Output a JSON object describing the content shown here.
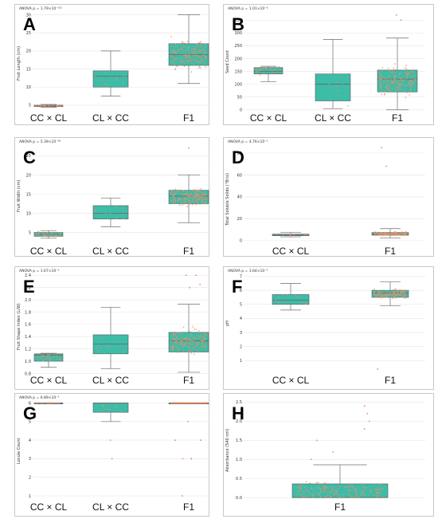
{
  "colors": {
    "box": "#3dbca8",
    "box_edge": "#5a5a5a",
    "median": "#6b6b6b",
    "point": "#e8906a",
    "grid": "#e6e6e6",
    "frame": "#c8c8c8"
  },
  "chart_data": [
    {
      "type": "box",
      "letter": "A",
      "anova": "ANOVA p = 1.79×10⁻¹⁰¹",
      "ylabel": "Fruit Length (cm)",
      "ylim": [
        3,
        31
      ],
      "yticks": [
        5,
        10,
        15,
        20,
        25,
        30
      ],
      "ytick_labels": [
        "5",
        "10",
        "15",
        "20",
        "25",
        "30"
      ],
      "categories": [
        "CC × CL",
        "CL × CC",
        "F1"
      ],
      "boxes": [
        {
          "q1": 4.6,
          "median": 4.8,
          "q3": 5.0,
          "whisker_low": 4.4,
          "whisker_high": 5.2,
          "points_n": 30,
          "outliers": []
        },
        {
          "q1": 10.0,
          "median": 13.0,
          "q3": 14.5,
          "whisker_low": 7.5,
          "whisker_high": 20.0,
          "points_n": 10,
          "outliers": []
        },
        {
          "q1": 16.0,
          "median": 19.0,
          "q3": 22.0,
          "whisker_low": 11.0,
          "whisker_high": 30.0,
          "points_n": 160,
          "outliers": []
        }
      ]
    },
    {
      "type": "box",
      "letter": "B",
      "anova": "ANOVA p = 1.01×10⁻⁶",
      "ylabel": "Seed Count",
      "ylim": [
        -10,
        385
      ],
      "yticks": [
        0,
        50,
        100,
        150,
        200,
        250,
        300,
        350
      ],
      "ytick_labels": [
        "0",
        "50",
        "100",
        "150",
        "200",
        "250",
        "300",
        "350"
      ],
      "categories": [
        "CC × CL",
        "CL × CC",
        "F1"
      ],
      "boxes": [
        {
          "q1": 140,
          "median": 150,
          "q3": 165,
          "whisker_low": 110,
          "whisker_high": 170,
          "points_n": 30,
          "outliers": []
        },
        {
          "q1": 35,
          "median": 100,
          "q3": 140,
          "whisker_low": 5,
          "whisker_high": 275,
          "points_n": 10,
          "outliers": []
        },
        {
          "q1": 70,
          "median": 120,
          "q3": 155,
          "whisker_low": 0,
          "whisker_high": 280,
          "points_n": 160,
          "outliers": [
            350,
            370
          ]
        }
      ]
    },
    {
      "type": "box",
      "letter": "C",
      "anova": "ANOVA p = 5.39×10⁻⁵⁶",
      "ylabel": "Fruit Width (cm)",
      "ylim": [
        2,
        28
      ],
      "yticks": [
        5,
        10,
        15,
        20,
        25
      ],
      "ytick_labels": [
        "5",
        "10",
        "15",
        "20",
        "25"
      ],
      "categories": [
        "CC × CL",
        "CL × CC",
        "F1"
      ],
      "boxes": [
        {
          "q1": 4.0,
          "median": 4.5,
          "q3": 5.0,
          "whisker_low": 3.5,
          "whisker_high": 5.5,
          "points_n": 30,
          "outliers": []
        },
        {
          "q1": 8.5,
          "median": 10.0,
          "q3": 12.0,
          "whisker_low": 6.5,
          "whisker_high": 14.0,
          "points_n": 10,
          "outliers": []
        },
        {
          "q1": 12.5,
          "median": 14.5,
          "q3": 16.0,
          "whisker_low": 7.5,
          "whisker_high": 20.0,
          "points_n": 160,
          "outliers": [
            27.0
          ]
        }
      ]
    },
    {
      "type": "box",
      "letter": "D",
      "anova": "ANOVA p = 4.76×10⁻¹",
      "ylabel": "Total Soluble Solids (°Brix)",
      "ylim": [
        -3,
        88
      ],
      "yticks": [
        0,
        20,
        40,
        60,
        80
      ],
      "ytick_labels": [
        "0",
        "20",
        "40",
        "60",
        "80"
      ],
      "categories": [
        "CC × CL",
        "F1"
      ],
      "boxes": [
        {
          "q1": 4.5,
          "median": 5.0,
          "q3": 6.0,
          "whisker_low": 3.5,
          "whisker_high": 7.5,
          "points_n": 12,
          "outliers": []
        },
        {
          "q1": 5.0,
          "median": 6.0,
          "q3": 7.5,
          "whisker_low": 2.5,
          "whisker_high": 11.0,
          "points_n": 120,
          "outliers": [
            68,
            85
          ]
        }
      ]
    },
    {
      "type": "box",
      "letter": "E",
      "anova": "ANOVA p = 1.67×10⁻³",
      "ylabel": "Fruit Shape Index (L/W)",
      "ylim": [
        0.78,
        2.43
      ],
      "yticks": [
        0.8,
        1.0,
        1.2,
        1.4,
        1.6,
        1.8,
        2.0,
        2.2,
        2.4
      ],
      "ytick_labels": [
        "0.8",
        "1.0",
        "1.2",
        "1.4",
        "1.6",
        "1.8",
        "2.0",
        "2.2",
        "2.4"
      ],
      "categories": [
        "CC × CL",
        "CL × CC",
        "F1"
      ],
      "boxes": [
        {
          "q1": 1.0,
          "median": 1.1,
          "q3": 1.12,
          "whisker_low": 0.9,
          "whisker_high": 1.13,
          "points_n": 30,
          "outliers": []
        },
        {
          "q1": 1.12,
          "median": 1.28,
          "q3": 1.43,
          "whisker_low": 0.88,
          "whisker_high": 1.88,
          "points_n": 10,
          "outliers": []
        },
        {
          "q1": 1.15,
          "median": 1.33,
          "q3": 1.47,
          "whisker_low": 0.82,
          "whisker_high": 1.93,
          "points_n": 160,
          "outliers": [
            2.2,
            2.25,
            2.4,
            2.4
          ]
        }
      ]
    },
    {
      "type": "box",
      "letter": "F",
      "anova": "ANOVA p = 3.64×10⁻²",
      "ylabel": "pH",
      "ylim": [
        0,
        7.2
      ],
      "yticks": [
        1,
        2,
        3,
        4,
        5,
        6,
        7
      ],
      "ytick_labels": [
        "1",
        "2",
        "3",
        "4",
        "5",
        "6",
        "7"
      ],
      "categories": [
        "CC × CL",
        "F1"
      ],
      "boxes": [
        {
          "q1": 5.0,
          "median": 5.3,
          "q3": 5.7,
          "whisker_low": 4.6,
          "whisker_high": 6.5,
          "points_n": 12,
          "outliers": []
        },
        {
          "q1": 5.5,
          "median": 5.8,
          "q3": 6.0,
          "whisker_low": 4.9,
          "whisker_high": 6.6,
          "points_n": 120,
          "outliers": [
            0.4
          ]
        }
      ]
    },
    {
      "type": "box",
      "letter": "G",
      "anova": "ANOVA p = 6.89×10⁻¹",
      "ylabel": "Locule Count",
      "ylim": [
        0.7,
        6.15
      ],
      "yticks": [
        1,
        2,
        3,
        4,
        5,
        6
      ],
      "ytick_labels": [
        "1",
        "2",
        "3",
        "4",
        "5",
        "6"
      ],
      "categories": [
        "CC × CL",
        "CL × CC",
        "F1"
      ],
      "boxes": [
        {
          "q1": 6.0,
          "median": 6.0,
          "q3": 6.0,
          "whisker_low": 6.0,
          "whisker_high": 6.0,
          "points_n": 30,
          "outliers": []
        },
        {
          "q1": 5.5,
          "median": 6.0,
          "q3": 6.0,
          "whisker_low": 5.0,
          "whisker_high": 6.0,
          "points_n": 10,
          "outliers": [
            4,
            3
          ]
        },
        {
          "q1": 6.0,
          "median": 6.0,
          "q3": 6.0,
          "whisker_low": 6.0,
          "whisker_high": 6.0,
          "points_n": 160,
          "outliers": [
            5,
            4,
            4,
            3,
            3,
            3,
            1
          ]
        }
      ]
    },
    {
      "type": "box",
      "letter": "H",
      "anova": "",
      "ylabel": "Absorbance (540 nm)",
      "ylim": [
        -0.1,
        2.55
      ],
      "yticks": [
        0.0,
        0.5,
        1.0,
        1.5,
        2.0,
        2.5
      ],
      "ytick_labels": [
        "0.0",
        "0.5",
        "1.0",
        "1.5",
        "2.0",
        "2.5"
      ],
      "categories": [
        "F1"
      ],
      "boxes": [
        {
          "q1": 0.0,
          "median": 0.0,
          "q3": 0.36,
          "whisker_low": 0.0,
          "whisker_high": 0.86,
          "points_n": 160,
          "outliers": [
            1.0,
            1.2,
            1.5,
            1.8,
            2.0,
            2.2,
            2.4
          ]
        }
      ]
    }
  ]
}
